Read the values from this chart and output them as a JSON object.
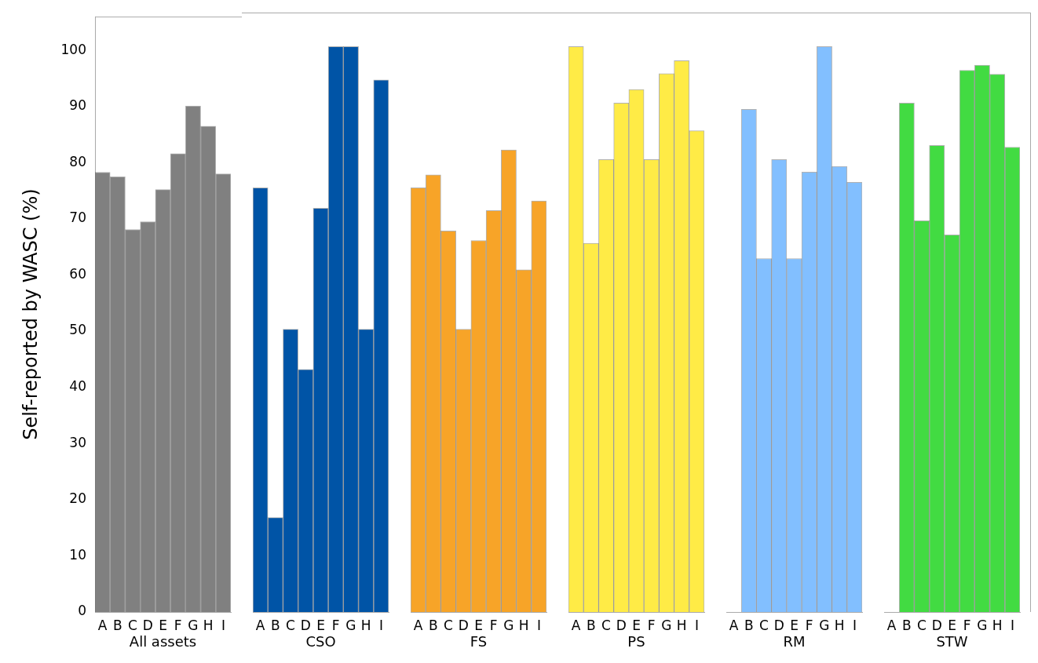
{
  "chart_data": [
    {
      "type": "bar",
      "xlabel": "All assets",
      "ylabel": "Self-reported by WASC (%)",
      "categories": [
        "A",
        "B",
        "C",
        "D",
        "E",
        "F",
        "G",
        "H",
        "I"
      ],
      "values": [
        78.3,
        77.5,
        68.1,
        69.5,
        75.2,
        81.6,
        90.1,
        86.5,
        78.0
      ],
      "color": "#808080",
      "ylim": [
        0,
        106
      ],
      "yticks": [
        0,
        10,
        20,
        30,
        40,
        50,
        60,
        70,
        80,
        90,
        100
      ],
      "grid": false
    },
    {
      "type": "bar",
      "xlabel": "CSO",
      "categories": [
        "A",
        "B",
        "C",
        "D",
        "E",
        "F",
        "G",
        "H",
        "I"
      ],
      "values": [
        75,
        16.7,
        50,
        42.9,
        71.4,
        100,
        100,
        50,
        94.1
      ],
      "color": "#0054a6",
      "ylim": [
        0,
        106
      ],
      "grid": false,
      "tick_labels": "x"
    },
    {
      "type": "bar",
      "xlabel": "FS",
      "categories": [
        "A",
        "B",
        "C",
        "D",
        "E",
        "F",
        "G",
        "H",
        "I"
      ],
      "values": [
        75,
        77.3,
        67.4,
        50,
        65.7,
        71,
        81.7,
        60.5,
        72.7
      ],
      "color": "#f7a428",
      "ylim": [
        0,
        106
      ],
      "grid": false,
      "tick_labels": "x"
    },
    {
      "type": "bar",
      "xlabel": "PS",
      "categories": [
        "A",
        "B",
        "C",
        "D",
        "E",
        "F",
        "G",
        "H",
        "I"
      ],
      "values": [
        100,
        65.2,
        80,
        90,
        92.4,
        80,
        95.2,
        97.5,
        85.1
      ],
      "color": "#ffeb46",
      "ylim": [
        0,
        106
      ],
      "grid": false,
      "tick_labels": "x"
    },
    {
      "type": "bar",
      "xlabel": "RM",
      "categories": [
        "A",
        "B",
        "C",
        "D",
        "E",
        "F",
        "G",
        "H",
        "I"
      ],
      "values": [
        0,
        88.9,
        62.5,
        80,
        62.5,
        77.8,
        100,
        78.8,
        76
      ],
      "color": "#82bfff",
      "ylim": [
        0,
        106
      ],
      "grid": false,
      "tick_labels": "x"
    },
    {
      "type": "bar",
      "xlabel": "STW",
      "categories": [
        "A",
        "B",
        "C",
        "D",
        "E",
        "F",
        "G",
        "H",
        "I"
      ],
      "values": [
        0,
        90,
        69.2,
        82.5,
        66.7,
        95.8,
        96.7,
        95.1,
        82.2
      ],
      "color": "#42db42",
      "ylim": [
        0,
        106
      ],
      "grid": false,
      "tick_labels": "x"
    }
  ]
}
